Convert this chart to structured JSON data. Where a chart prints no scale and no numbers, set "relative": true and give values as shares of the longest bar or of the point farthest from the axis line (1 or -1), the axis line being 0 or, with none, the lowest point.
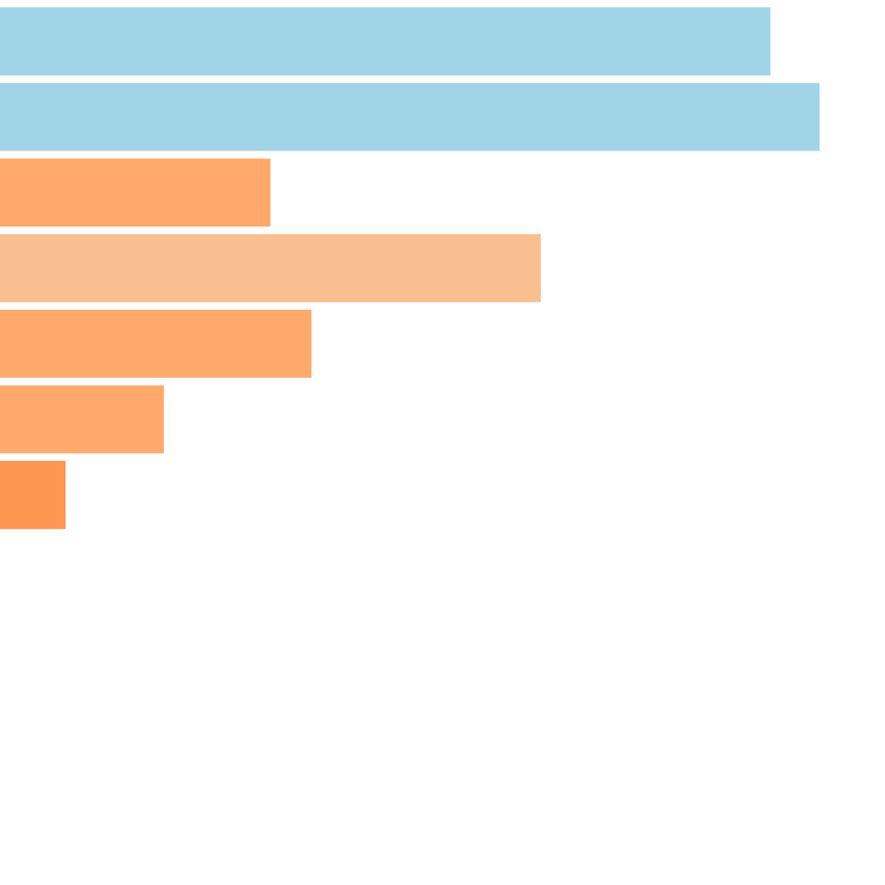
{
  "chart_data": {
    "type": "bar",
    "orientation": "horizontal",
    "relative": true,
    "categories": [
      null,
      null,
      null,
      null,
      null,
      null,
      null
    ],
    "values": [
      0.94,
      1,
      0.33,
      0.66,
      0.38,
      0.2,
      0.08
    ],
    "colors": [
      "#a0d4e6",
      "#a0d4e6",
      "#ffa96b",
      "#f8bf91",
      "#ffa96b",
      "#ffa96b",
      "#fd9650"
    ],
    "tick_labels": false
  }
}
